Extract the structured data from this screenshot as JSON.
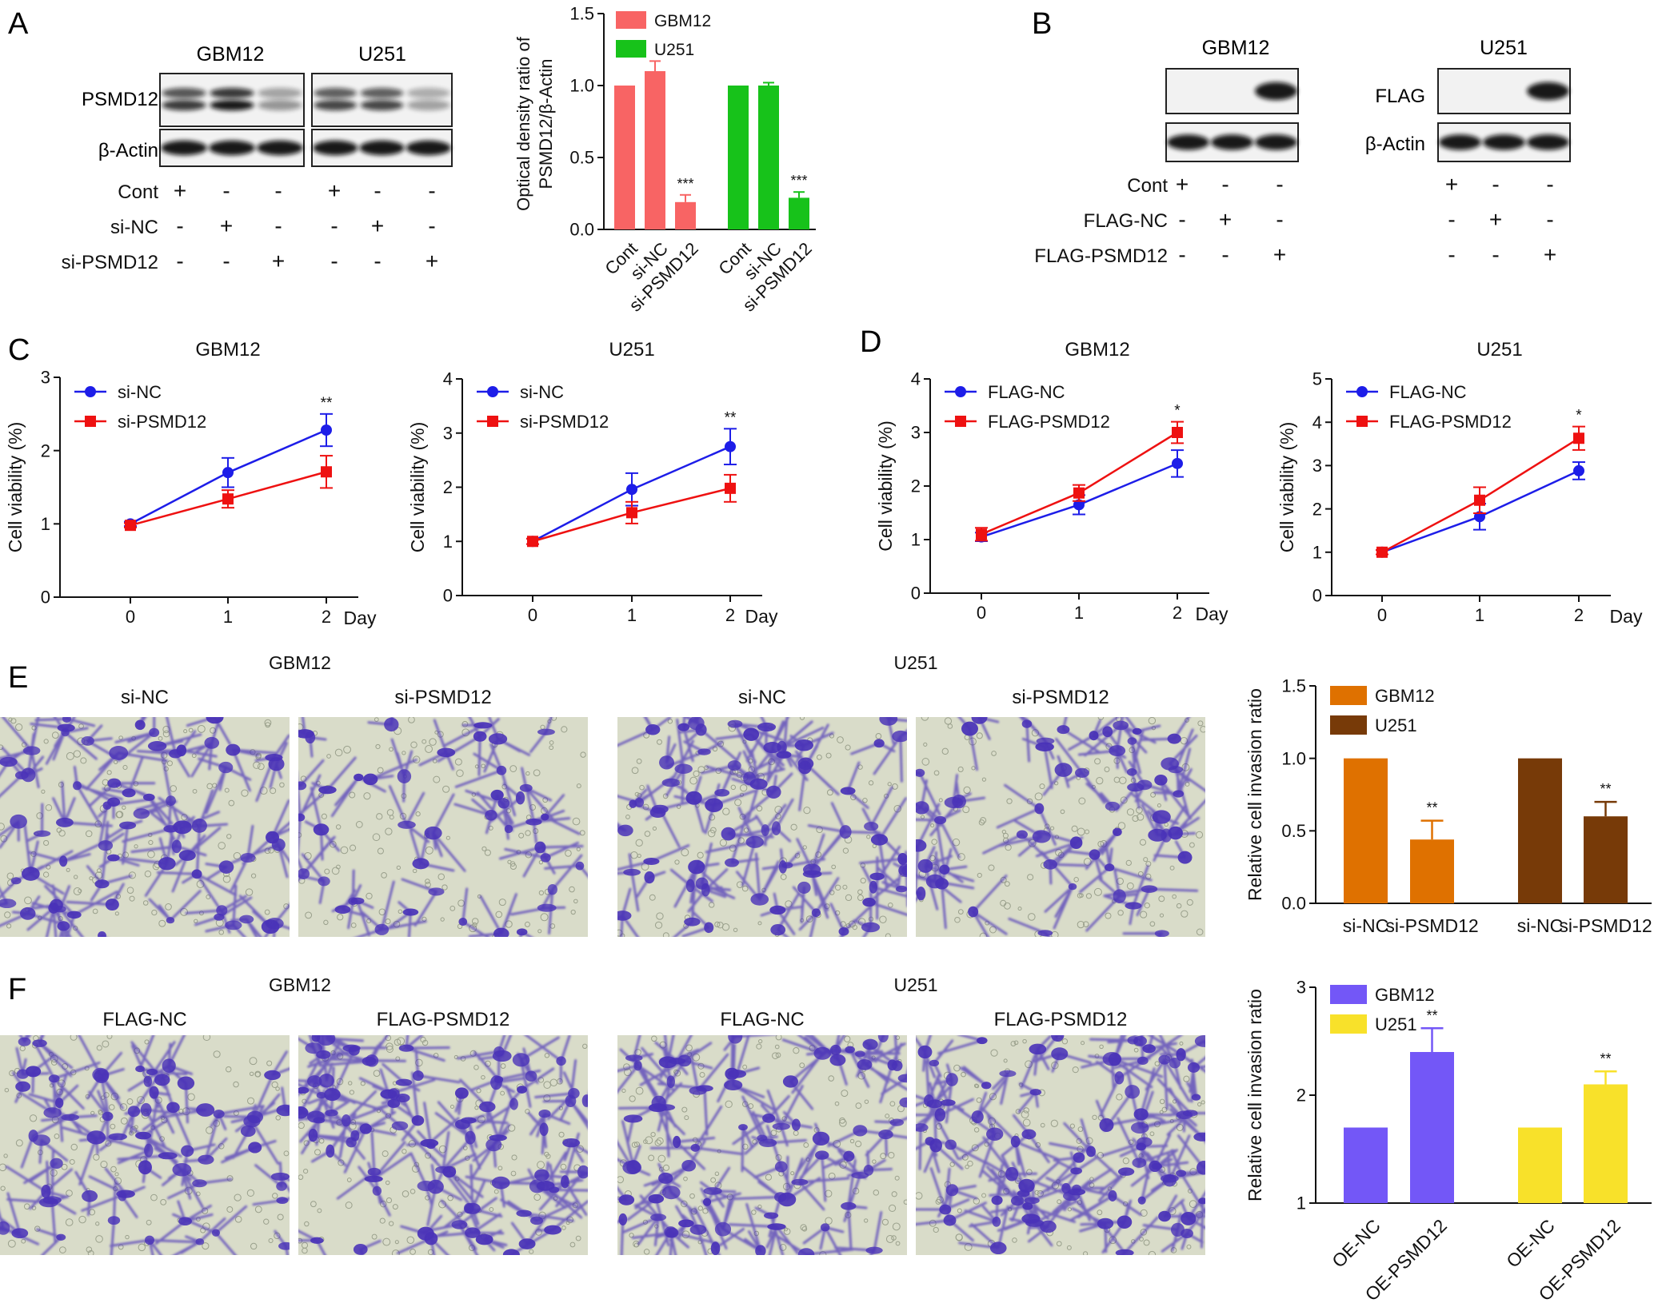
{
  "colors": {
    "gbm12_red": "#f86464",
    "u251_green": "#17c21a",
    "si_nc_blue": "#1d1de8",
    "si_psmd12_red": "#ee1111",
    "gbm12_orange": "#df7100",
    "u251_brown": "#773a08",
    "gbm12_purple": "#7357f7",
    "u251_yellow": "#f8e12a",
    "stain_purple": "#4a33b8",
    "field_bg": "#d9dcc9"
  },
  "panelA": {
    "letter": "A",
    "blot_titles": [
      "GBM12",
      "U251"
    ],
    "row_labels": [
      "PSMD12",
      "β-Actin"
    ],
    "conditions": [
      {
        "label": "Cont",
        "signs": [
          "+",
          "-",
          "-",
          "+",
          "-",
          "-"
        ]
      },
      {
        "label": "si-NC",
        "signs": [
          "-",
          "+",
          "-",
          "-",
          "+",
          "-"
        ]
      },
      {
        "label": "si-PSMD12",
        "signs": [
          "-",
          "-",
          "+",
          "-",
          "-",
          "+"
        ]
      }
    ],
    "band_intensity": {
      "gbm12_psmd12": [
        0.8,
        0.95,
        0.4
      ],
      "u251_psmd12": [
        0.75,
        0.75,
        0.35
      ],
      "gbm12_actin": [
        0.95,
        0.95,
        0.95
      ],
      "u251_actin": [
        0.95,
        0.95,
        0.95
      ]
    }
  },
  "chart_A": {
    "type": "bar",
    "ylabel_line1": "Optical density ratio of",
    "ylabel_line2": "PSMD12/β-Actin",
    "ylim": [
      0,
      1.5
    ],
    "yticks": [
      "0.0",
      "0.5",
      "1.0",
      "1.5"
    ],
    "groups": [
      {
        "categories": [
          "Cont",
          "si-NC",
          "si-PSMD12"
        ],
        "values": [
          1.0,
          1.1,
          0.19
        ],
        "errors": [
          0,
          0.07,
          0.05
        ],
        "sig": [
          "",
          "",
          "***"
        ]
      },
      {
        "categories": [
          "Cont",
          "si-NC",
          "si-PSMD12"
        ],
        "values": [
          1.0,
          1.0,
          0.22
        ],
        "errors": [
          0,
          0.02,
          0.04
        ],
        "sig": [
          "",
          "",
          "***"
        ]
      }
    ],
    "legend": [
      "GBM12",
      "U251"
    ]
  },
  "panelB": {
    "letter": "B",
    "blot_titles": [
      "GBM12",
      "U251"
    ],
    "row_labels": [
      "FLAG",
      "β-Actin"
    ],
    "conditions": [
      {
        "label": "Cont",
        "signs": [
          "+",
          "-",
          "-",
          "+",
          "-",
          "-"
        ]
      },
      {
        "label": "FLAG-NC",
        "signs": [
          "-",
          "+",
          "-",
          "-",
          "+",
          "-"
        ]
      },
      {
        "label": "FLAG-PSMD12",
        "signs": [
          "-",
          "-",
          "+",
          "-",
          "-",
          "+"
        ]
      }
    ],
    "band_intensity": {
      "gbm12_flag": [
        0.0,
        0.0,
        0.95
      ],
      "u251_flag": [
        0.0,
        0.0,
        0.95
      ],
      "gbm12_actin": [
        0.95,
        0.95,
        0.95
      ],
      "u251_actin": [
        0.95,
        0.95,
        0.95
      ]
    }
  },
  "letters": {
    "C": "C",
    "D": "D",
    "E": "E",
    "F": "F"
  },
  "line_charts": [
    {
      "type": "line",
      "title": "GBM12",
      "ylabel": "Cell viability (%)",
      "xlabel": "Day",
      "x": [
        0,
        1,
        2
      ],
      "xticks": [
        "0",
        "1",
        "2"
      ],
      "ylim": [
        0,
        3
      ],
      "yticks": [
        "0",
        "1",
        "2",
        "3"
      ],
      "series": [
        {
          "name": "si-NC",
          "values": [
            1.0,
            1.7,
            2.28
          ],
          "errors": [
            0.03,
            0.2,
            0.22
          ]
        },
        {
          "name": "si-PSMD12",
          "values": [
            0.98,
            1.34,
            1.71
          ],
          "errors": [
            0.03,
            0.12,
            0.22
          ]
        }
      ],
      "sig": "**"
    },
    {
      "type": "line",
      "title": "U251",
      "ylabel": "Cell viability (%)",
      "xlabel": "Day",
      "x": [
        0,
        1,
        2
      ],
      "xticks": [
        "0",
        "1",
        "2"
      ],
      "ylim": [
        0,
        4
      ],
      "yticks": [
        "0",
        "1",
        "2",
        "3",
        "4"
      ],
      "series": [
        {
          "name": "si-NC",
          "values": [
            1.0,
            1.96,
            2.75
          ],
          "errors": [
            0.05,
            0.3,
            0.33
          ]
        },
        {
          "name": "si-PSMD12",
          "values": [
            1.0,
            1.53,
            1.98
          ],
          "errors": [
            0.05,
            0.2,
            0.25
          ]
        }
      ],
      "sig": "**"
    },
    {
      "type": "line",
      "title": "GBM12",
      "ylabel": "Cell viability (%)",
      "xlabel": "Day",
      "x": [
        0,
        1,
        2
      ],
      "xticks": [
        "0",
        "1",
        "2"
      ],
      "ylim": [
        0,
        4
      ],
      "yticks": [
        "0",
        "1",
        "2",
        "3",
        "4"
      ],
      "series": [
        {
          "name": "FLAG-NC",
          "values": [
            1.05,
            1.65,
            2.42
          ],
          "errors": [
            0.08,
            0.18,
            0.25
          ]
        },
        {
          "name": "FLAG-PSMD12",
          "values": [
            1.1,
            1.87,
            3.0
          ],
          "errors": [
            0.12,
            0.15,
            0.2
          ]
        }
      ],
      "sig": "*"
    },
    {
      "type": "line",
      "title": "U251",
      "ylabel": "Cell viability (%)",
      "xlabel": "Day",
      "x": [
        0,
        1,
        2
      ],
      "xticks": [
        "0",
        "1",
        "2"
      ],
      "ylim": [
        0,
        5
      ],
      "yticks": [
        "0",
        "1",
        "2",
        "3",
        "4",
        "5"
      ],
      "series": [
        {
          "name": "FLAG-NC",
          "values": [
            1.0,
            1.82,
            2.88
          ],
          "errors": [
            0.05,
            0.3,
            0.2
          ]
        },
        {
          "name": "FLAG-PSMD12",
          "values": [
            1.0,
            2.2,
            3.63
          ],
          "errors": [
            0.05,
            0.3,
            0.27
          ]
        }
      ],
      "sig": "*"
    }
  ],
  "panelE": {
    "group_titles": [
      "GBM12",
      "U251"
    ],
    "image_labels": [
      "si-NC",
      "si-PSMD12",
      "si-NC",
      "si-PSMD12"
    ],
    "stain_density": [
      0.6,
      0.3,
      0.65,
      0.45
    ]
  },
  "chart_E": {
    "type": "bar",
    "ylabel": "Relative cell invasion ratio",
    "ylim": [
      0,
      1.5
    ],
    "yticks": [
      "0.0",
      "0.5",
      "1.0",
      "1.5"
    ],
    "categories": [
      "si-NC",
      "si-PSMD12",
      "si-NC",
      "si-PSMD12"
    ],
    "values": [
      1.0,
      0.44,
      1.0,
      0.6
    ],
    "errors": [
      0,
      0.13,
      0,
      0.1
    ],
    "sig": [
      "",
      "**",
      "",
      "**"
    ],
    "legend": [
      "GBM12",
      "U251"
    ]
  },
  "panelF": {
    "group_titles": [
      "GBM12",
      "U251"
    ],
    "image_labels": [
      "FLAG-NC",
      "FLAG-PSMD12",
      "FLAG-NC",
      "FLAG-PSMD12"
    ],
    "stain_density": [
      0.55,
      0.85,
      0.7,
      0.85
    ]
  },
  "chart_F": {
    "type": "bar",
    "ylabel": "Relative cell invasion ratio",
    "ylim": [
      1,
      3
    ],
    "yticks": [
      "1",
      "2",
      "3"
    ],
    "categories": [
      "OE-NC",
      "OE-PSMD12",
      "OE-NC",
      "OE-PSMD12"
    ],
    "values": [
      1.7,
      2.4,
      1.7,
      2.1
    ],
    "errors": [
      0,
      0.22,
      0,
      0.12
    ],
    "sig": [
      "",
      "**",
      "",
      "**"
    ],
    "legend": [
      "GBM12",
      "U251"
    ]
  }
}
